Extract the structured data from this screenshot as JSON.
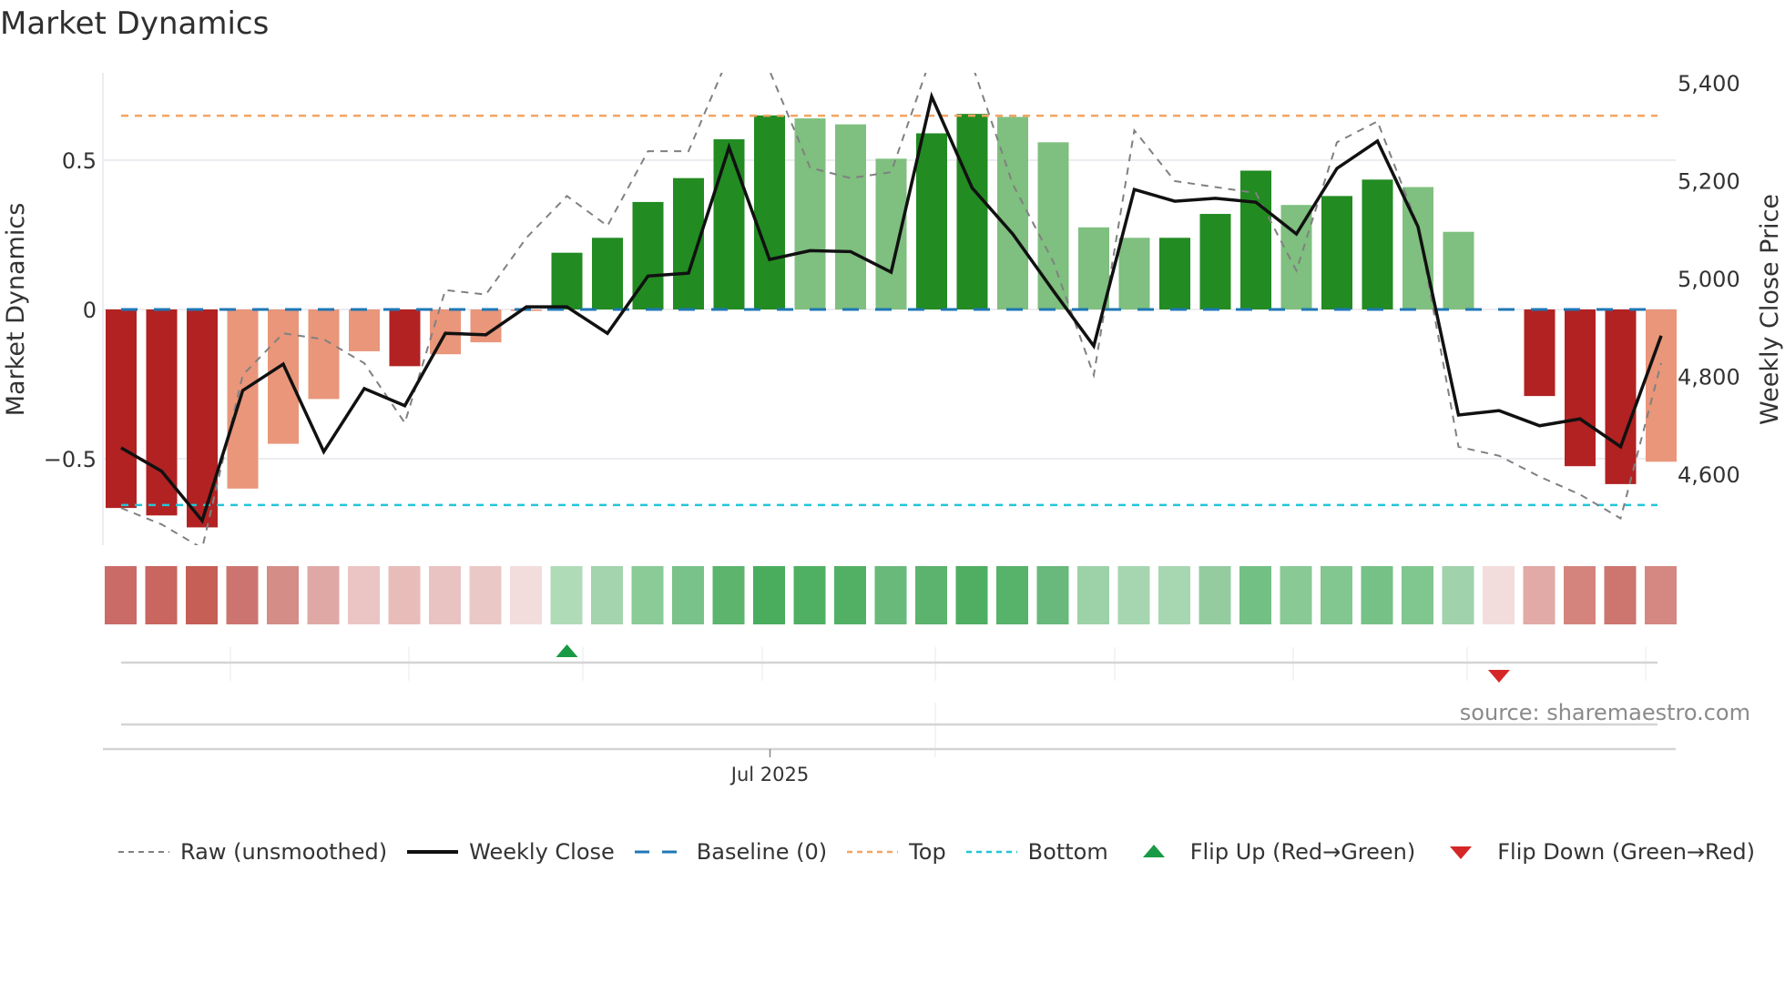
{
  "title": "Market Dynamics",
  "source_label": "source: sharemaestro.com",
  "legend": [
    {
      "key": "raw",
      "label": "Raw (unsmoothed)",
      "style": "dashed",
      "color": "#808080"
    },
    {
      "key": "close",
      "label": "Weekly Close",
      "style": "solid",
      "color": "#111111"
    },
    {
      "key": "baseline",
      "label": "Baseline (0)",
      "style": "longdash",
      "color": "#1f77b4"
    },
    {
      "key": "top",
      "label": "Top",
      "style": "dotted",
      "color": "#f4a460"
    },
    {
      "key": "bottom",
      "label": "Bottom",
      "style": "dotted",
      "color": "#22c5d8"
    },
    {
      "key": "flip_up",
      "label": "Flip Up (Red→Green)",
      "style": "triangle-up",
      "color": "#1a9a44"
    },
    {
      "key": "flip_down",
      "label": "Flip Down (Green→Red)",
      "style": "triangle-down",
      "color": "#d62728"
    }
  ],
  "colors": {
    "strong_pos": "#228b22",
    "weak_pos": "#7fbf7f",
    "strong_neg": "#b22222",
    "weak_neg": "#e9967a",
    "grid": "#ececf2"
  },
  "chart_data": {
    "type": "bar",
    "title": "Market Dynamics",
    "xlabel": "",
    "ylabel": "Market Dynamics",
    "y2label": "Weekly Close Price",
    "ylim": [
      -0.79,
      0.79
    ],
    "y2lim": [
      4490,
      5420
    ],
    "yticks": [
      {
        "v": 0.5,
        "label": "0.5"
      },
      {
        "v": 0,
        "label": "0"
      },
      {
        "v": -0.5,
        "label": "−0.5"
      }
    ],
    "y2ticks": [
      {
        "v": 5400,
        "label": "5,400"
      },
      {
        "v": 5200,
        "label": "5,200"
      },
      {
        "v": 5000,
        "label": "5,000"
      },
      {
        "v": 4800,
        "label": "4,800"
      },
      {
        "v": 4600,
        "label": "4,600"
      }
    ],
    "xticks": [
      {
        "index": 16,
        "label": "Jul 2025"
      }
    ],
    "top_level": 0.649,
    "bottom_level": -0.655,
    "baseline": 0,
    "series": [
      {
        "name": "Market Dynamics (smoothed)",
        "values": [
          -0.665,
          -0.69,
          -0.73,
          -0.6,
          -0.45,
          -0.3,
          -0.14,
          -0.19,
          -0.15,
          -0.11,
          -0.005,
          0.19,
          0.24,
          0.36,
          0.44,
          0.57,
          0.65,
          0.64,
          0.62,
          0.505,
          0.59,
          0.655,
          0.645,
          0.56,
          0.275,
          0.24,
          0.24,
          0.32,
          0.465,
          0.35,
          0.38,
          0.435,
          0.41,
          0.26,
          0.0,
          -0.29,
          -0.525,
          -0.585,
          -0.51
        ],
        "strength": [
          "strong",
          "strong",
          "strong",
          "weak",
          "weak",
          "weak",
          "weak",
          "strong",
          "weak",
          "weak",
          "weak",
          "strong",
          "strong",
          "strong",
          "strong",
          "strong",
          "strong",
          "weak",
          "weak",
          "weak",
          "strong",
          "strong",
          "weak",
          "weak",
          "weak",
          "weak",
          "strong",
          "strong",
          "strong",
          "weak",
          "strong",
          "strong",
          "weak",
          "weak",
          "weak",
          "strong",
          "strong",
          "strong",
          "weak"
        ]
      },
      {
        "name": "Raw (unsmoothed)",
        "values": [
          -0.665,
          -0.72,
          -0.8,
          -0.22,
          -0.08,
          -0.1,
          -0.18,
          -0.38,
          0.065,
          0.05,
          0.24,
          0.38,
          0.28,
          0.53,
          0.53,
          0.85,
          0.8,
          0.475,
          0.44,
          0.46,
          0.85,
          0.82,
          0.42,
          0.16,
          -0.22,
          0.6,
          0.43,
          0.41,
          0.39,
          0.13,
          0.56,
          0.63,
          0.28,
          -0.46,
          -0.49,
          -0.56,
          -0.62,
          -0.7,
          -0.18
        ]
      },
      {
        "name": "Weekly Close",
        "axis": "right",
        "values": [
          4654,
          4606,
          4505,
          4771,
          4825,
          4646,
          4775,
          4740,
          4888,
          4885,
          4942,
          4942,
          4888,
          5005,
          5011,
          5268,
          5039,
          5057,
          5055,
          5013,
          5372,
          5185,
          5091,
          4975,
          4862,
          5182,
          5158,
          5164,
          5156,
          5091,
          5225,
          5281,
          5106,
          4721,
          4730,
          4699,
          4713,
          4656,
          4883
        ]
      }
    ],
    "heat_strip": [
      "#cb6b67",
      "#c9665f",
      "#c65f56",
      "#cc7570",
      "#d48d87",
      "#e0a8a5",
      "#eac5c3",
      "#e8bdb9",
      "#e9c3c1",
      "#eac8c6",
      "#f2dcdc",
      "#b0dbb7",
      "#a3d4ad",
      "#8acb98",
      "#79c28a",
      "#5cb46d",
      "#4aad5e",
      "#4fb063",
      "#52b065",
      "#69b97b",
      "#5bb36d",
      "#4fae62",
      "#57b26a",
      "#68b97b",
      "#9dd1a8",
      "#a5d6b0",
      "#a7d7b1",
      "#94cca0",
      "#73c085",
      "#88c995",
      "#82c690",
      "#76c186",
      "#80c68f",
      "#a0d2ab",
      "#f2dcdc",
      "#e1aaa6",
      "#d4847d",
      "#cd756f",
      "#d58781"
    ],
    "flips": [
      {
        "index": 11,
        "direction": "up"
      },
      {
        "index": 34,
        "direction": "down"
      }
    ]
  }
}
